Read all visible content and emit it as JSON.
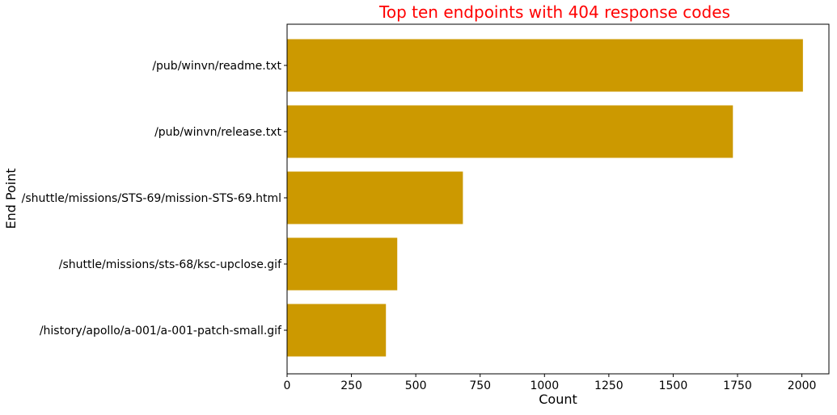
{
  "chart_data": {
    "type": "bar",
    "orientation": "horizontal",
    "title": "Top ten endpoints with 404 response codes",
    "xlabel": "Count",
    "ylabel": "End Point",
    "categories": [
      "/pub/winvn/readme.txt",
      "/pub/winvn/release.txt",
      "/shuttle/missions/STS-69/mission-STS-69.html",
      "/shuttle/missions/sts-68/ksc-upclose.gif",
      "/history/apollo/a-001/a-001-patch-small.gif"
    ],
    "values": [
      2004,
      1732,
      683,
      428,
      384
    ],
    "xlim": [
      0,
      2105
    ],
    "xticks": [
      0,
      250,
      500,
      750,
      1000,
      1250,
      1500,
      1750,
      2000
    ],
    "xtick_labels": [
      "0",
      "250",
      "500",
      "750",
      "1000",
      "1250",
      "1500",
      "1750",
      "2000"
    ],
    "grid": false,
    "colors": {
      "bar": "#cc9900",
      "title": "#ff0000",
      "axis": "#000000"
    }
  }
}
